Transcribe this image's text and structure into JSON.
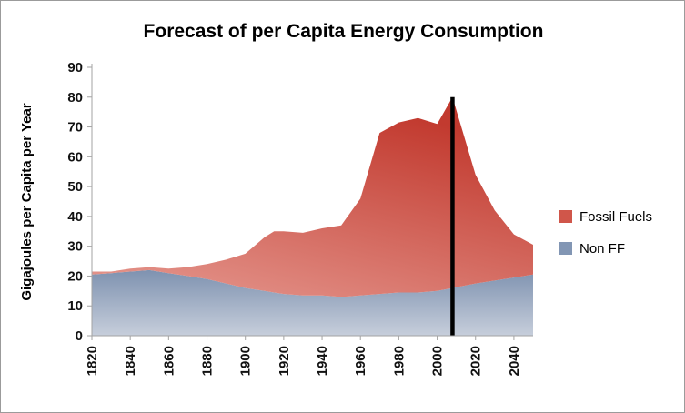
{
  "chart_data": {
    "type": "area",
    "stacked": true,
    "title": "Forecast of per Capita Energy Consumption",
    "xlabel": "",
    "ylabel": "Gigajoules per Capita per Year",
    "xlim": [
      1820,
      2050
    ],
    "ylim": [
      0,
      90
    ],
    "x_ticks": [
      1820,
      1840,
      1860,
      1880,
      1900,
      1920,
      1940,
      1960,
      1980,
      2000,
      2020,
      2040
    ],
    "y_ticks": [
      0,
      10,
      20,
      30,
      40,
      50,
      60,
      70,
      80,
      90
    ],
    "grid": false,
    "legend_position": "right-middle",
    "x": [
      1820,
      1830,
      1840,
      1850,
      1860,
      1870,
      1880,
      1890,
      1900,
      1910,
      1915,
      1920,
      1930,
      1940,
      1950,
      1960,
      1970,
      1980,
      1990,
      2000,
      2008,
      2020,
      2030,
      2040,
      2050
    ],
    "series": [
      {
        "name": "Fossil Fuels",
        "color": "#d0564a",
        "gradient": {
          "from": "#e69a91",
          "to": "#c23a2f"
        },
        "values": [
          1,
          0.5,
          1,
          1,
          1.5,
          3,
          5,
          8,
          11.5,
          18,
          20.5,
          21,
          21,
          22.5,
          24,
          32.5,
          54,
          57,
          58.5,
          56,
          64,
          36.5,
          23.5,
          14.5,
          10
        ]
      },
      {
        "name": "Non FF",
        "color": "#8296b4",
        "gradient": {
          "from": "#7e92b0",
          "to": "#c6cedb"
        },
        "values": [
          20.5,
          21,
          21.5,
          22,
          21,
          20,
          19,
          17.5,
          16,
          15,
          14.5,
          14,
          13.5,
          13.5,
          13,
          13.5,
          14,
          14.5,
          14.5,
          15,
          16,
          17.5,
          18.5,
          19.5,
          20.5
        ]
      }
    ],
    "marker_line": {
      "x": 2008,
      "y_top": 80,
      "color": "#000000"
    }
  }
}
